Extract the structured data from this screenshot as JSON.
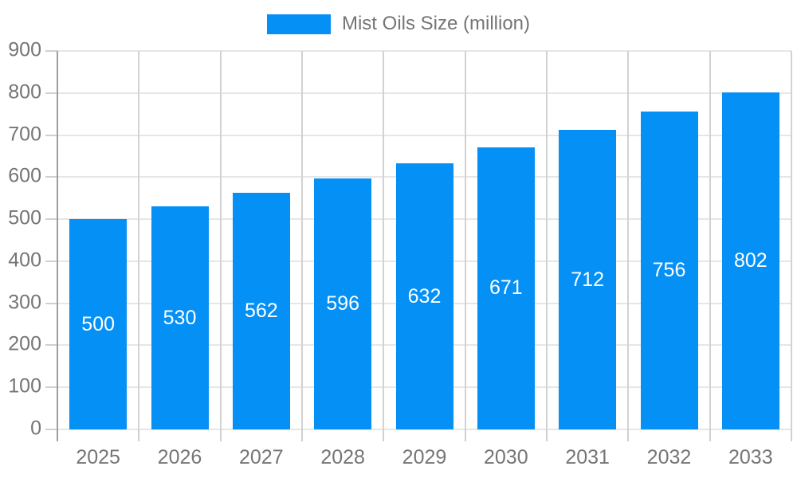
{
  "legend": {
    "label": "Mist Oils Size (million)"
  },
  "chart_data": {
    "type": "bar",
    "title": "",
    "categories": [
      "2025",
      "2026",
      "2027",
      "2028",
      "2029",
      "2030",
      "2031",
      "2032",
      "2033"
    ],
    "series": [
      {
        "name": "Mist Oils Size (million)",
        "values": [
          500,
          530,
          562,
          596,
          632,
          671,
          712,
          756,
          802
        ]
      }
    ],
    "bar_labels": [
      "500",
      "530",
      "562",
      "596",
      "632",
      "671",
      "712",
      "756",
      "802"
    ],
    "ylim": [
      0,
      900
    ],
    "ytick_step": 100,
    "ytick_labels": [
      "0",
      "100",
      "200",
      "300",
      "400",
      "500",
      "600",
      "700",
      "800",
      "900"
    ],
    "grid": "horizontal and vertical light gray",
    "legend_position": "top-center",
    "colors": {
      "bar": "#0590f5",
      "bar_label": "#ffffff",
      "axis_text": "#757575",
      "axis_line": "#9e9e9e",
      "tick": "#d0d0d0",
      "grid_horizontal": "#e6e6e6",
      "grid_vertical": "#d2d2d2",
      "background": "#ffffff"
    }
  }
}
